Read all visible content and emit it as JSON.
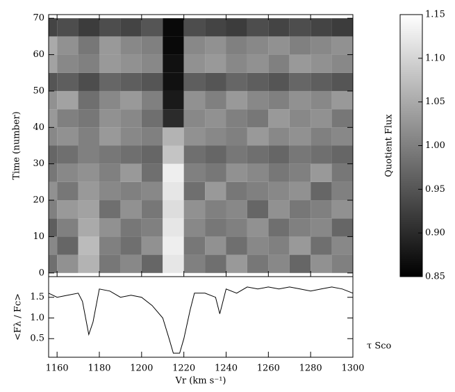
{
  "chart_data": [
    {
      "type": "heatmap",
      "ylabel": "Time (number)",
      "colorbar_label": "Quotient Flux",
      "x": [
        1155,
        1165,
        1175,
        1185,
        1195,
        1205,
        1215,
        1225,
        1235,
        1245,
        1255,
        1265,
        1275,
        1285,
        1295
      ],
      "y": [
        2.5,
        7.5,
        12.5,
        17.5,
        22.5,
        27.5,
        32.5,
        37.5,
        42.5,
        47.5,
        52.5,
        57.5,
        62.5,
        67.5
      ],
      "z": [
        [
          0.98,
          1.02,
          1.06,
          0.99,
          1.01,
          0.97,
          1.12,
          1.0,
          0.98,
          1.03,
          0.99,
          1.01,
          0.97,
          1.02,
          1.0
        ],
        [
          1.01,
          0.97,
          1.07,
          1.0,
          0.98,
          1.02,
          1.13,
          0.99,
          1.02,
          0.98,
          1.01,
          1.0,
          1.03,
          0.98,
          1.01
        ],
        [
          0.96,
          1.0,
          1.05,
          1.02,
          0.99,
          1.0,
          1.12,
          1.01,
          0.99,
          1.0,
          1.02,
          0.98,
          1.0,
          1.01,
          0.97
        ],
        [
          1.0,
          1.03,
          1.04,
          0.98,
          1.02,
          0.99,
          1.11,
          1.02,
          1.0,
          1.01,
          0.97,
          1.02,
          0.99,
          1.0,
          1.02
        ],
        [
          1.02,
          0.99,
          1.03,
          1.01,
          1.0,
          1.01,
          1.12,
          0.98,
          1.03,
          0.99,
          1.0,
          1.01,
          1.02,
          0.97,
          1.0
        ],
        [
          0.99,
          1.01,
          1.02,
          1.0,
          1.03,
          0.98,
          1.13,
          1.0,
          0.99,
          1.02,
          1.01,
          0.99,
          1.0,
          1.03,
          0.99
        ],
        [
          0.97,
          0.98,
          1.0,
          0.99,
          0.98,
          0.97,
          1.08,
          0.98,
          0.97,
          0.99,
          0.98,
          0.97,
          0.99,
          0.98,
          0.97
        ],
        [
          1.01,
          1.02,
          1.0,
          1.03,
          1.01,
          1.0,
          1.06,
          1.02,
          1.01,
          1.0,
          1.03,
          1.01,
          1.02,
          1.0,
          1.01
        ],
        [
          1.03,
          1.0,
          0.99,
          1.02,
          1.01,
          0.98,
          0.9,
          1.01,
          1.02,
          1.0,
          0.99,
          1.03,
          1.01,
          1.02,
          0.99
        ],
        [
          1.02,
          1.04,
          0.98,
          1.01,
          1.03,
          1.0,
          0.88,
          1.02,
          1.0,
          1.03,
          1.01,
          1.0,
          1.02,
          1.01,
          1.03
        ],
        [
          0.95,
          0.96,
          0.94,
          0.97,
          0.96,
          0.95,
          0.87,
          0.96,
          0.95,
          0.97,
          0.96,
          0.95,
          0.97,
          0.96,
          0.95
        ],
        [
          1.04,
          1.01,
          1.0,
          1.03,
          1.02,
          1.01,
          0.87,
          1.02,
          1.03,
          1.01,
          1.02,
          1.0,
          1.03,
          1.02,
          1.01
        ],
        [
          1.05,
          1.02,
          0.99,
          1.03,
          1.01,
          1.0,
          0.86,
          1.01,
          1.02,
          1.0,
          1.01,
          1.02,
          1.0,
          1.01,
          1.02
        ],
        [
          0.93,
          0.94,
          0.92,
          0.94,
          0.93,
          0.95,
          0.86,
          0.94,
          0.93,
          0.92,
          0.94,
          0.93,
          0.94,
          0.93,
          0.92
        ]
      ],
      "xlim": [
        1156,
        1300
      ],
      "ylim": [
        -1,
        71
      ],
      "yticks": [
        0,
        10,
        20,
        30,
        40,
        50,
        60,
        70
      ],
      "clim": [
        0.85,
        1.15
      ],
      "cticks": [
        0.85,
        {
          "value": 0.9,
          "label": "0.90"
        },
        0.95,
        {
          "value": 1.0,
          "label": "1.00"
        },
        1.05,
        {
          "value": 1.1,
          "label": "1.10"
        },
        1.15
      ]
    },
    {
      "type": "line",
      "xlabel": "Vr (km s⁻¹)",
      "ylabel": "<Fλ / Fc>",
      "annotation": "τ Sco",
      "color": "#000000",
      "x": [
        1156,
        1160,
        1165,
        1170,
        1172,
        1175,
        1177,
        1180,
        1185,
        1190,
        1195,
        1200,
        1205,
        1210,
        1213,
        1215,
        1218,
        1220,
        1223,
        1225,
        1230,
        1235,
        1237,
        1240,
        1245,
        1250,
        1255,
        1260,
        1265,
        1270,
        1275,
        1280,
        1285,
        1290,
        1295,
        1300
      ],
      "values": [
        1.6,
        1.5,
        1.55,
        1.6,
        1.4,
        0.6,
        0.9,
        1.7,
        1.65,
        1.5,
        1.55,
        1.5,
        1.3,
        1.0,
        0.5,
        0.15,
        0.15,
        0.5,
        1.2,
        1.6,
        1.6,
        1.5,
        1.1,
        1.7,
        1.6,
        1.75,
        1.7,
        1.75,
        1.7,
        1.75,
        1.7,
        1.65,
        1.7,
        1.75,
        1.7,
        1.6
      ],
      "xlim": [
        1156,
        1300
      ],
      "ylim": [
        0.05,
        2.0
      ],
      "xticks": [
        1160,
        1180,
        1200,
        1220,
        1240,
        1260,
        1280,
        1300
      ],
      "yticks": [
        0.5,
        {
          "value": 1.0,
          "label": "1.0"
        },
        1.5
      ]
    }
  ]
}
